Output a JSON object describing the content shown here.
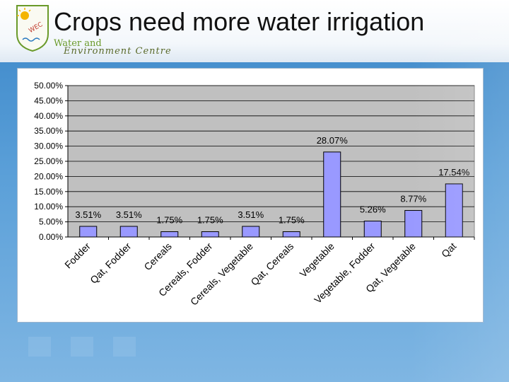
{
  "slide": {
    "title": "Crops need more water irrigation",
    "logo_line1": "Water and",
    "logo_line2": "Environment Centre",
    "logo_ring": "WEC"
  },
  "colors": {
    "bar": "#9999ff",
    "plot_bg": "#c0c0c0",
    "accent": "#3a86c8"
  },
  "chart_data": {
    "type": "bar",
    "title": "",
    "xlabel": "",
    "ylabel": "",
    "ylim": [
      0,
      50
    ],
    "yticks": [
      0,
      5,
      10,
      15,
      20,
      25,
      30,
      35,
      40,
      45,
      50
    ],
    "ytick_labels": [
      "0.00%",
      "5.00%",
      "10.00%",
      "15.00%",
      "20.00%",
      "25.00%",
      "30.00%",
      "35.00%",
      "40.00%",
      "45.00%",
      "50.00%"
    ],
    "categories": [
      "Fodder",
      "Qat, Fodder",
      "Cereals",
      "Cereals, Fodder",
      "Cereals, Vegetable",
      "Qat, Cereals",
      "Vegetable",
      "Vegetable, Fodder",
      "Qat, Vegetable",
      "Qat"
    ],
    "values": [
      3.51,
      3.51,
      1.75,
      1.75,
      3.51,
      1.75,
      28.07,
      5.26,
      8.77,
      17.54
    ],
    "data_labels": [
      "3.51%",
      "3.51%",
      "1.75%",
      "1.75%",
      "3.51%",
      "1.75%",
      "28.07%",
      "5.26%",
      "8.77%",
      "17.54%"
    ],
    "grid": true,
    "legend": "none"
  }
}
